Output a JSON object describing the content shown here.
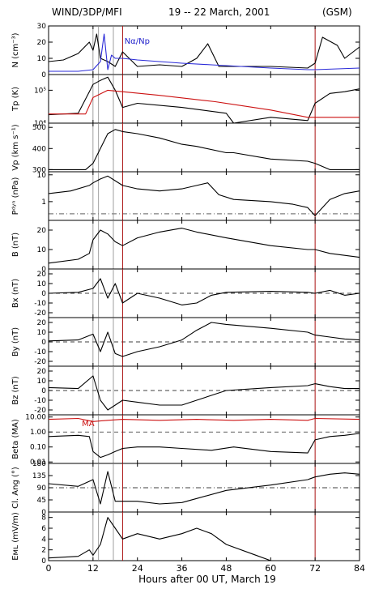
{
  "header": {
    "left": "WIND/3DP/MFI",
    "center": "19 -- 22 March, 2001",
    "right": "(GSM)"
  },
  "chart_data": {
    "type": "line",
    "xlabel": "Hours after 00 UT, March 19",
    "xlim": [
      0,
      84
    ],
    "xticks": [
      0,
      12,
      24,
      36,
      48,
      60,
      72,
      84
    ],
    "vlines_gray": [
      12,
      13.5,
      17.5
    ],
    "vlines_red": [
      20,
      72
    ],
    "panels": [
      {
        "ylabel": "N (cm⁻³)",
        "ylim": [
          0,
          30
        ],
        "yticks": [
          0,
          10,
          20,
          30
        ],
        "annotation": "Nα/Np",
        "annotation_color": "#2222cc",
        "series": [
          {
            "color": "#000000",
            "x": [
              0,
              4,
              8,
              11,
              12,
              13,
              14,
              16,
              18,
              20,
              24,
              30,
              36,
              40,
              43,
              46,
              60,
              70,
              72,
              74,
              78,
              80,
              84
            ],
            "y": [
              8,
              9,
              13,
              20,
              15,
              25,
              10,
              8,
              5,
              14,
              5,
              6,
              5,
              10,
              19,
              5,
              5,
              4,
              7,
              23,
              18,
              10,
              17
            ]
          },
          {
            "color": "#2a2ad8",
            "x": [
              0,
              8,
              12,
              14,
              15,
              16,
              17,
              18,
              20,
              24,
              30,
              36,
              44,
              60,
              70,
              72,
              84
            ],
            "y": [
              2,
              2,
              3,
              8,
              25,
              3,
              12,
              10,
              10,
              9,
              8,
              7,
              6,
              4,
              3,
              3,
              4
            ]
          }
        ]
      },
      {
        "ylabel": "Tp (K)",
        "log": true,
        "ylim": [
          10000,
          300000
        ],
        "yticks": [
          10000,
          100000
        ],
        "yticklabels": [
          "10⁴",
          "10⁵"
        ],
        "series": [
          {
            "color": "#000000",
            "x": [
              0,
              8,
              11,
              12,
              14,
              16,
              18,
              20,
              24,
              36,
              48,
              50,
              60,
              70,
              72,
              76,
              80,
              84
            ],
            "y": [
              18000,
              20000,
              90000,
              150000,
              200000,
              250000,
              100000,
              30000,
              40000,
              30000,
              20000,
              10000,
              15000,
              12000,
              40000,
              80000,
              90000,
              110000
            ]
          },
          {
            "color": "#cc1111",
            "x": [
              0,
              10,
              12,
              16,
              20,
              30,
              45,
              60,
              70,
              72,
              84
            ],
            "y": [
              19000,
              19000,
              60000,
              100000,
              90000,
              70000,
              45000,
              25000,
              15000,
              15000,
              15000
            ]
          }
        ]
      },
      {
        "ylabel": "Vp (km s⁻¹)",
        "ylim": [
          290,
          520
        ],
        "yticks": [
          300,
          400,
          500
        ],
        "series": [
          {
            "color": "#000000",
            "x": [
              0,
              10,
              12,
              14,
              16,
              18,
              20,
              24,
              30,
              36,
              40,
              48,
              50,
              60,
              70,
              72,
              76,
              80,
              84
            ],
            "y": [
              300,
              300,
              330,
              400,
              470,
              490,
              480,
              470,
              450,
              420,
              410,
              380,
              380,
              350,
              340,
              330,
              300,
              300,
              300
            ]
          }
        ]
      },
      {
        "ylabel": "Pᵈʸⁿ (nPa)",
        "log": true,
        "ylim": [
          0.2,
          13
        ],
        "yticks": [
          1,
          10
        ],
        "yticklabels": [
          "1",
          "10"
        ],
        "hline_dashdot": 0.35,
        "series": [
          {
            "color": "#000000",
            "x": [
              0,
              6,
              11,
              12,
              14,
              16,
              18,
              20,
              24,
              30,
              36,
              40,
              43,
              46,
              50,
              60,
              66,
              70,
              72,
              76,
              80,
              84
            ],
            "y": [
              2,
              2.5,
              4,
              5,
              7,
              9,
              6,
              4,
              3,
              2.5,
              3,
              4,
              5,
              1.8,
              1.2,
              1,
              0.8,
              0.6,
              0.3,
              1.2,
              2,
              2.5
            ]
          }
        ]
      },
      {
        "ylabel": "B (nT)",
        "ylim": [
          0,
          25
        ],
        "yticks": [
          0,
          10,
          20
        ],
        "series": [
          {
            "color": "#000000",
            "x": [
              0,
              8,
              11,
              12,
              14,
              16,
              18,
              20,
              24,
              30,
              36,
              40,
              48,
              60,
              70,
              72,
              76,
              80,
              84
            ],
            "y": [
              3,
              5,
              8,
              15,
              20,
              18,
              14,
              12,
              16,
              19,
              21,
              19,
              16,
              12,
              10,
              10,
              8,
              7,
              6
            ]
          }
        ]
      },
      {
        "ylabel": "Bx (nT)",
        "ylim": [
          -25,
          25
        ],
        "yticks": [
          -20,
          -10,
          0,
          10,
          20
        ],
        "hline_dashed": 0,
        "series": [
          {
            "color": "#000000",
            "x": [
              0,
              8,
              12,
              14,
              16,
              18,
              20,
              24,
              30,
              36,
              40,
              44,
              48,
              60,
              70,
              72,
              76,
              80,
              84
            ],
            "y": [
              0,
              1,
              5,
              15,
              -5,
              10,
              -10,
              0,
              -5,
              -12,
              -10,
              -2,
              1,
              2,
              1,
              0,
              3,
              -2,
              0
            ]
          }
        ]
      },
      {
        "ylabel": "By (nT)",
        "ylim": [
          -25,
          25
        ],
        "yticks": [
          -20,
          -10,
          0,
          10,
          20
        ],
        "hline_dashed": 0,
        "series": [
          {
            "color": "#000000",
            "x": [
              0,
              8,
              12,
              14,
              16,
              18,
              20,
              24,
              30,
              36,
              40,
              44,
              48,
              60,
              70,
              72,
              76,
              80,
              84
            ],
            "y": [
              1,
              2,
              8,
              -10,
              10,
              -12,
              -15,
              -10,
              -5,
              2,
              12,
              20,
              18,
              14,
              10,
              7,
              5,
              3,
              2
            ]
          }
        ]
      },
      {
        "ylabel": "Bz (nT)",
        "ylim": [
          -25,
          25
        ],
        "yticks": [
          -20,
          -10,
          0,
          10,
          20
        ],
        "hline_dashed": 0,
        "series": [
          {
            "color": "#000000",
            "x": [
              0,
              8,
              12,
              14,
              16,
              18,
              20,
              24,
              30,
              36,
              40,
              48,
              60,
              70,
              72,
              76,
              80,
              84
            ],
            "y": [
              3,
              2,
              15,
              -10,
              -20,
              -15,
              -10,
              -12,
              -15,
              -15,
              -10,
              0,
              3,
              5,
              7,
              4,
              2,
              2
            ]
          }
        ]
      },
      {
        "ylabel": "Beta (MA)",
        "log": true,
        "ylim": [
          0.008,
          14
        ],
        "yticks": [
          0.01,
          0.1,
          1,
          10
        ],
        "yticklabels": [
          "0.01",
          "0.10",
          "1.00",
          "10.00"
        ],
        "hline_dashed": 1,
        "annotation": "MA",
        "annotation_color": "#cc1111",
        "series": [
          {
            "color": "#000000",
            "x": [
              0,
              8,
              11,
              12,
              14,
              16,
              18,
              20,
              24,
              30,
              36,
              44,
              50,
              60,
              70,
              72,
              76,
              80,
              84
            ],
            "y": [
              0.5,
              0.6,
              0.5,
              0.05,
              0.02,
              0.03,
              0.05,
              0.08,
              0.1,
              0.1,
              0.08,
              0.06,
              0.1,
              0.05,
              0.04,
              0.3,
              0.5,
              0.6,
              0.8
            ]
          },
          {
            "color": "#cc1111",
            "x": [
              0,
              8,
              12,
              16,
              20,
              30,
              40,
              50,
              60,
              70,
              72,
              84
            ],
            "y": [
              7,
              8,
              5,
              6,
              7,
              6,
              7,
              6,
              7,
              6,
              8,
              7
            ]
          }
        ]
      },
      {
        "ylabel": "Cl. Ang (°)",
        "ylim": [
          0,
          180
        ],
        "yticks": [
          0,
          45,
          90,
          135,
          180
        ],
        "yticklabels": [
          "180",
          "135",
          "90",
          "45",
          "0"
        ],
        "invert_y": true,
        "hline_dashdot": 90,
        "series": [
          {
            "color": "#000000",
            "x": [
              0,
              8,
              12,
              14,
              16,
              18,
              20,
              24,
              30,
              36,
              40,
              48,
              60,
              70,
              72,
              76,
              80,
              84
            ],
            "y": [
              75,
              85,
              60,
              150,
              30,
              140,
              140,
              140,
              150,
              145,
              130,
              100,
              80,
              60,
              50,
              40,
              35,
              40
            ]
          }
        ]
      },
      {
        "ylabel": "Eᴍʟ (mV/m)",
        "ylim": [
          0,
          9
        ],
        "yticks": [
          0,
          2,
          4,
          6,
          8
        ],
        "series": [
          {
            "color": "#000000",
            "x": [
              0,
              8,
              11,
              12,
              14,
              16,
              18,
              20,
              24,
              30,
              36,
              40,
              44,
              48,
              56,
              60,
              70,
              72,
              76,
              80,
              84
            ],
            "y": [
              0.5,
              0.8,
              2,
              1,
              3,
              8,
              6,
              4,
              5,
              4,
              5,
              6,
              5,
              3,
              1,
              0,
              0,
              0,
              0,
              0,
              0
            ]
          }
        ]
      }
    ]
  }
}
